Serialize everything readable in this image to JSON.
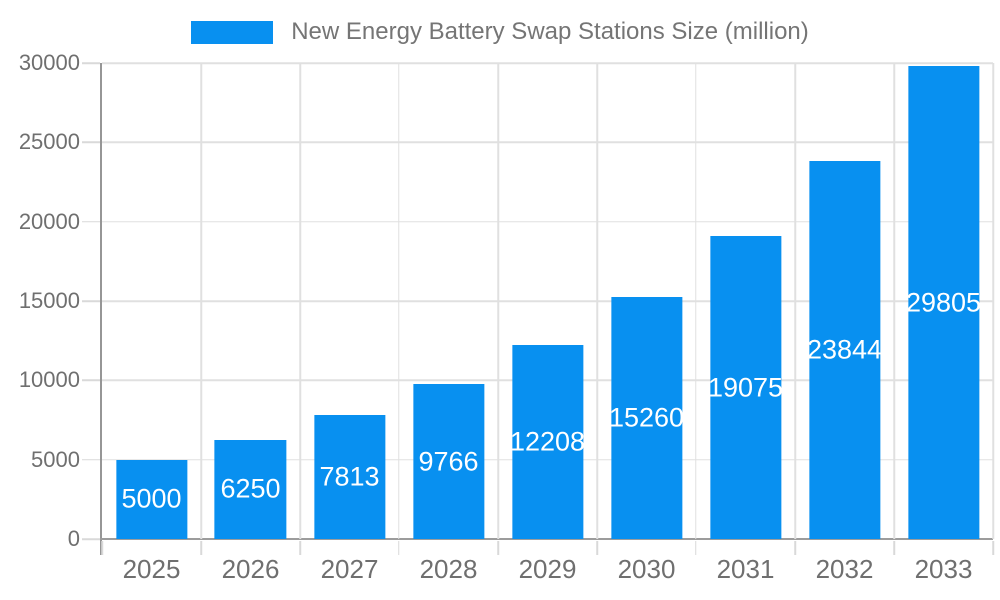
{
  "legend": {
    "label": "New Energy Battery Swap Stations Size (million)",
    "swatch_color": "#0890F0"
  },
  "chart_data": {
    "type": "bar",
    "title": "New Energy Battery Swap Stations Size (million)",
    "categories": [
      "2025",
      "2026",
      "2027",
      "2028",
      "2029",
      "2030",
      "2031",
      "2032",
      "2033"
    ],
    "values": [
      5000,
      6250,
      7813,
      9766,
      12208,
      15260,
      19075,
      23844,
      29805
    ],
    "xlabel": "",
    "ylabel": "",
    "ylim": [
      0,
      30000
    ],
    "yticks": [
      0,
      5000,
      10000,
      15000,
      20000,
      25000,
      30000
    ],
    "grid": true,
    "legend_position": "top",
    "bar_color": "#0890F0",
    "bar_label_color": "#FFFFFF"
  },
  "colors": {
    "background": "#FFFFFF",
    "axis_line": "#969696",
    "gridline": "#E0E0E0",
    "tick_mark": "#D9D9D9",
    "tick_label": "#6F6F6F",
    "legend_text": "#757575"
  }
}
